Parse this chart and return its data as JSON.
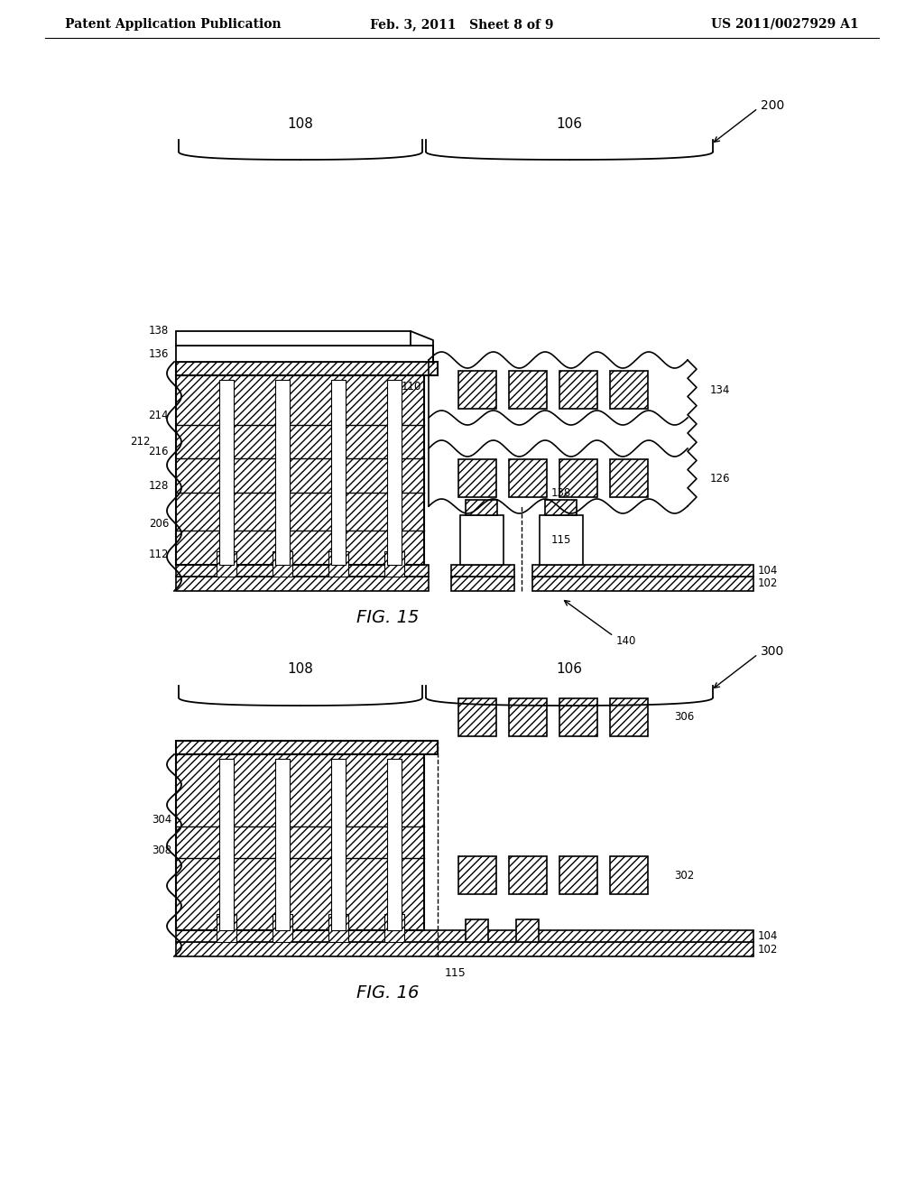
{
  "bg_color": "#ffffff",
  "header_left": "Patent Application Publication",
  "header_mid": "Feb. 3, 2011   Sheet 8 of 9",
  "header_right": "US 2011/0027929 A1",
  "fig15_label": "FIG. 15",
  "fig16_label": "FIG. 16"
}
